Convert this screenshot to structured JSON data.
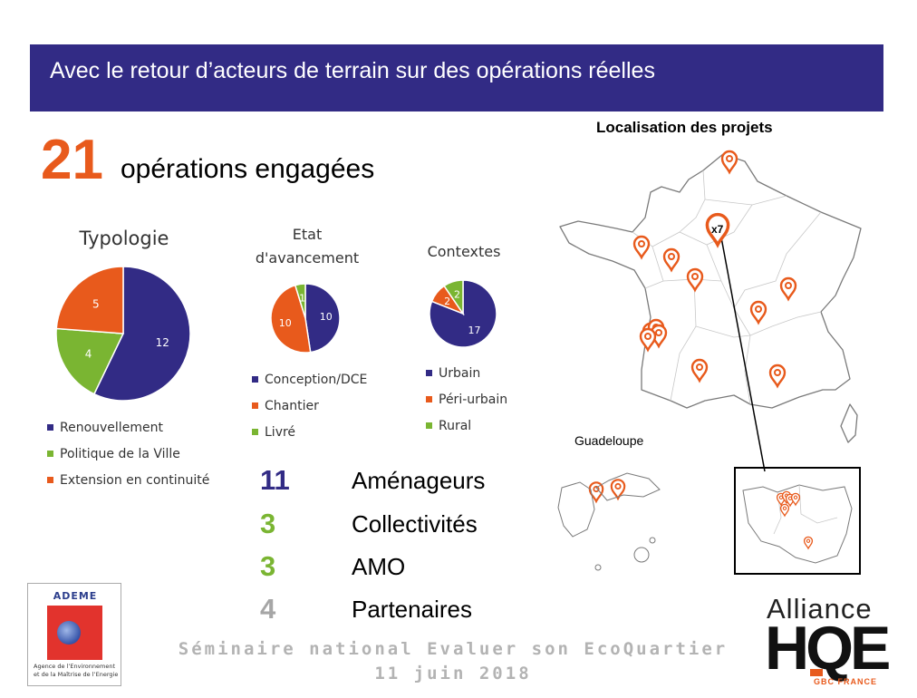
{
  "header": {
    "title": "Avec le retour d’acteurs de terrain sur des opérations réelles"
  },
  "headline": {
    "number": "21",
    "text": "opérations engagées"
  },
  "chart_data": [
    {
      "type": "pie",
      "title": "Typologie",
      "categories": [
        "Renouvellement",
        "Politique de la Ville",
        "Extension en continuité"
      ],
      "values": [
        12,
        4,
        5
      ],
      "colors": [
        "#322b85",
        "#7ab532",
        "#e85a1c"
      ]
    },
    {
      "type": "pie",
      "title": "Etat d'avancement",
      "title_lines": [
        "Etat",
        "d'avancement"
      ],
      "categories": [
        "Conception/DCE",
        "Chantier",
        "Livré"
      ],
      "values": [
        10,
        10,
        1
      ],
      "colors": [
        "#322b85",
        "#e85a1c",
        "#7ab532"
      ]
    },
    {
      "type": "pie",
      "title": "Contextes",
      "categories": [
        "Urbain",
        "Péri-urbain",
        "Rural"
      ],
      "values": [
        17,
        2,
        2
      ],
      "colors": [
        "#322b85",
        "#e85a1c",
        "#7ab532"
      ]
    }
  ],
  "stats": [
    {
      "value": "11",
      "label": "Aménageurs",
      "color": "#322b85"
    },
    {
      "value": "3",
      "label": "Collectivités",
      "color": "#7ab532"
    },
    {
      "value": "3",
      "label": "AMO",
      "color": "#7ab532"
    },
    {
      "value": "4",
      "label": "Partenaires",
      "color": "#a6a6a6"
    }
  ],
  "map": {
    "title": "Localisation des projets",
    "paris_badge": "x7",
    "inset_title": "Guadeloupe",
    "pin_color": "#e85a1c"
  },
  "ademe": {
    "name": "ADEME",
    "caption": "Agence de l’Environnement et de la Maîtrise de l’Energie"
  },
  "footer": {
    "line1": "Séminaire national Evaluer son EcoQuartier",
    "line2": "11 juin 2018"
  },
  "hqe": {
    "line1": "Alliance",
    "mark": "HQE",
    "sub": "GBC FRANCE"
  }
}
